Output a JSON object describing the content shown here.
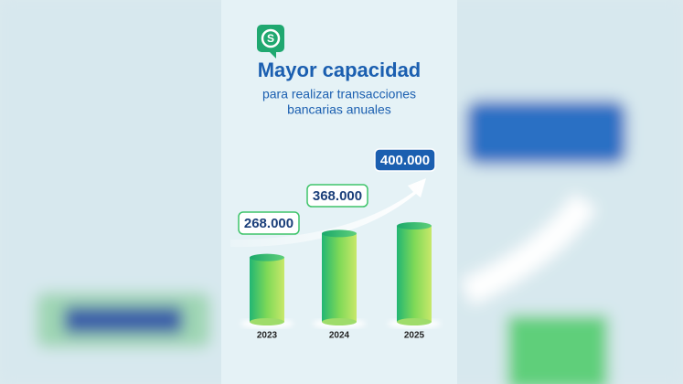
{
  "chart_data": {
    "type": "bar",
    "title": "Mayor capacidad",
    "subtitle": [
      "para realizar transacciones",
      "bancarias anuales"
    ],
    "categories": [
      "2023",
      "2024",
      "2025"
    ],
    "values": [
      268000,
      368000,
      400000
    ],
    "value_labels": [
      "268.000",
      "368.000",
      "400.000"
    ],
    "color": "#3ec46a"
  }
}
